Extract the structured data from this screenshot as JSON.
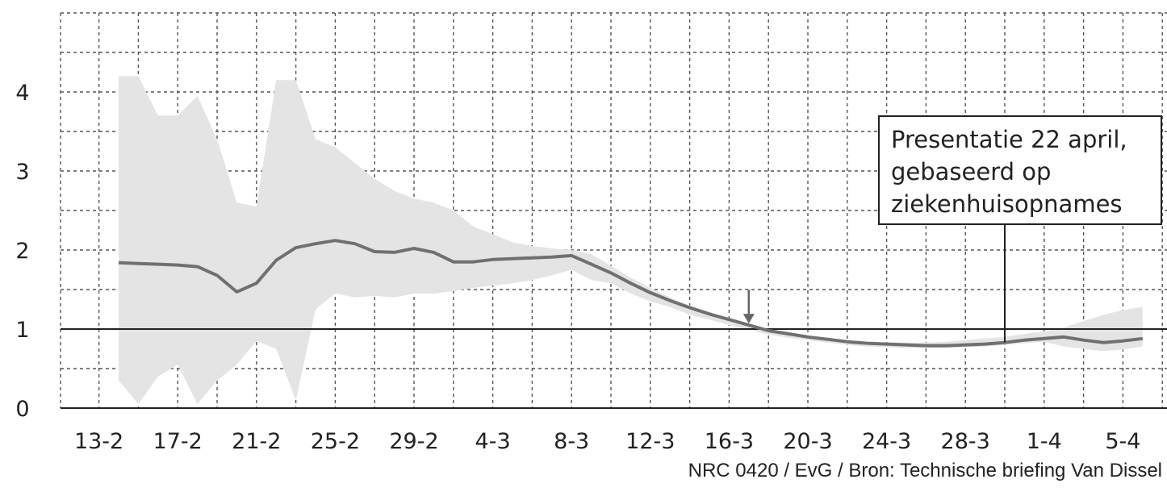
{
  "chart_data": {
    "type": "line",
    "xlabel": "",
    "ylabel": "",
    "ylim": [
      0,
      5
    ],
    "y_ticks": [
      "0",
      "1",
      "2",
      "3",
      "4"
    ],
    "x_ticks": [
      "13-2",
      "17-2",
      "21-2",
      "25-2",
      "29-2",
      "4-3",
      "8-3",
      "12-3",
      "16-3",
      "20-3",
      "24-3",
      "28-3",
      "1-4",
      "5-4"
    ],
    "grid": true,
    "reference_line": 1,
    "series": [
      {
        "values": [
          1.84,
          1.83,
          1.82,
          1.81,
          1.79,
          1.68,
          1.47,
          1.58,
          1.87,
          2.03,
          2.08,
          2.12,
          2.08,
          1.98,
          1.97,
          2.02,
          1.97,
          1.85,
          1.85,
          1.88,
          1.89,
          1.9,
          1.91,
          1.93,
          1.82,
          1.71,
          1.58,
          1.46,
          1.36,
          1.27,
          1.19,
          1.12,
          1.05,
          0.98,
          0.94,
          0.9,
          0.87,
          0.84,
          0.82,
          0.81,
          0.8,
          0.79,
          0.79,
          0.8,
          0.81,
          0.83,
          0.86,
          0.88,
          0.9,
          0.86,
          0.83,
          0.85,
          0.88
        ]
      }
    ],
    "band_upper": [
      4.2,
      4.2,
      3.7,
      3.7,
      3.95,
      3.4,
      2.6,
      2.55,
      4.15,
      4.15,
      3.4,
      3.3,
      3.1,
      2.9,
      2.75,
      2.65,
      2.6,
      2.5,
      2.3,
      2.2,
      2.1,
      2.05,
      2.02,
      2.0,
      1.95,
      1.8,
      1.65,
      1.52,
      1.4,
      1.3,
      1.22,
      1.12,
      1.05,
      1.0,
      0.96,
      0.92,
      0.89,
      0.86,
      0.84,
      0.83,
      0.83,
      0.83,
      0.84,
      0.86,
      0.88,
      0.9,
      0.94,
      0.97,
      1.02,
      1.1,
      1.18,
      1.24,
      1.28
    ],
    "band_lower": [
      0.35,
      0.05,
      0.4,
      0.55,
      0.05,
      0.35,
      0.55,
      0.85,
      0.75,
      0.1,
      1.25,
      1.45,
      1.4,
      1.42,
      1.4,
      1.45,
      1.45,
      1.48,
      1.52,
      1.55,
      1.58,
      1.62,
      1.68,
      1.75,
      1.62,
      1.58,
      1.45,
      1.35,
      1.28,
      1.18,
      1.12,
      1.05,
      0.99,
      0.93,
      0.89,
      0.86,
      0.83,
      0.8,
      0.78,
      0.77,
      0.76,
      0.76,
      0.76,
      0.77,
      0.78,
      0.8,
      0.82,
      0.84,
      0.78,
      0.75,
      0.72,
      0.74,
      0.78
    ],
    "marker_day_index": 32,
    "annotation_day_index": 45,
    "annotation": [
      "Presentatie 22 april,",
      "gebaseerd op",
      "ziekenhuisopnames"
    ],
    "colors": {
      "line": "#707070",
      "band": "#e4e4e4",
      "grid": "#555555",
      "axis": "#222222"
    }
  },
  "source": "NRC 0420 / EvG / Bron: Technische briefing Van Dissel"
}
